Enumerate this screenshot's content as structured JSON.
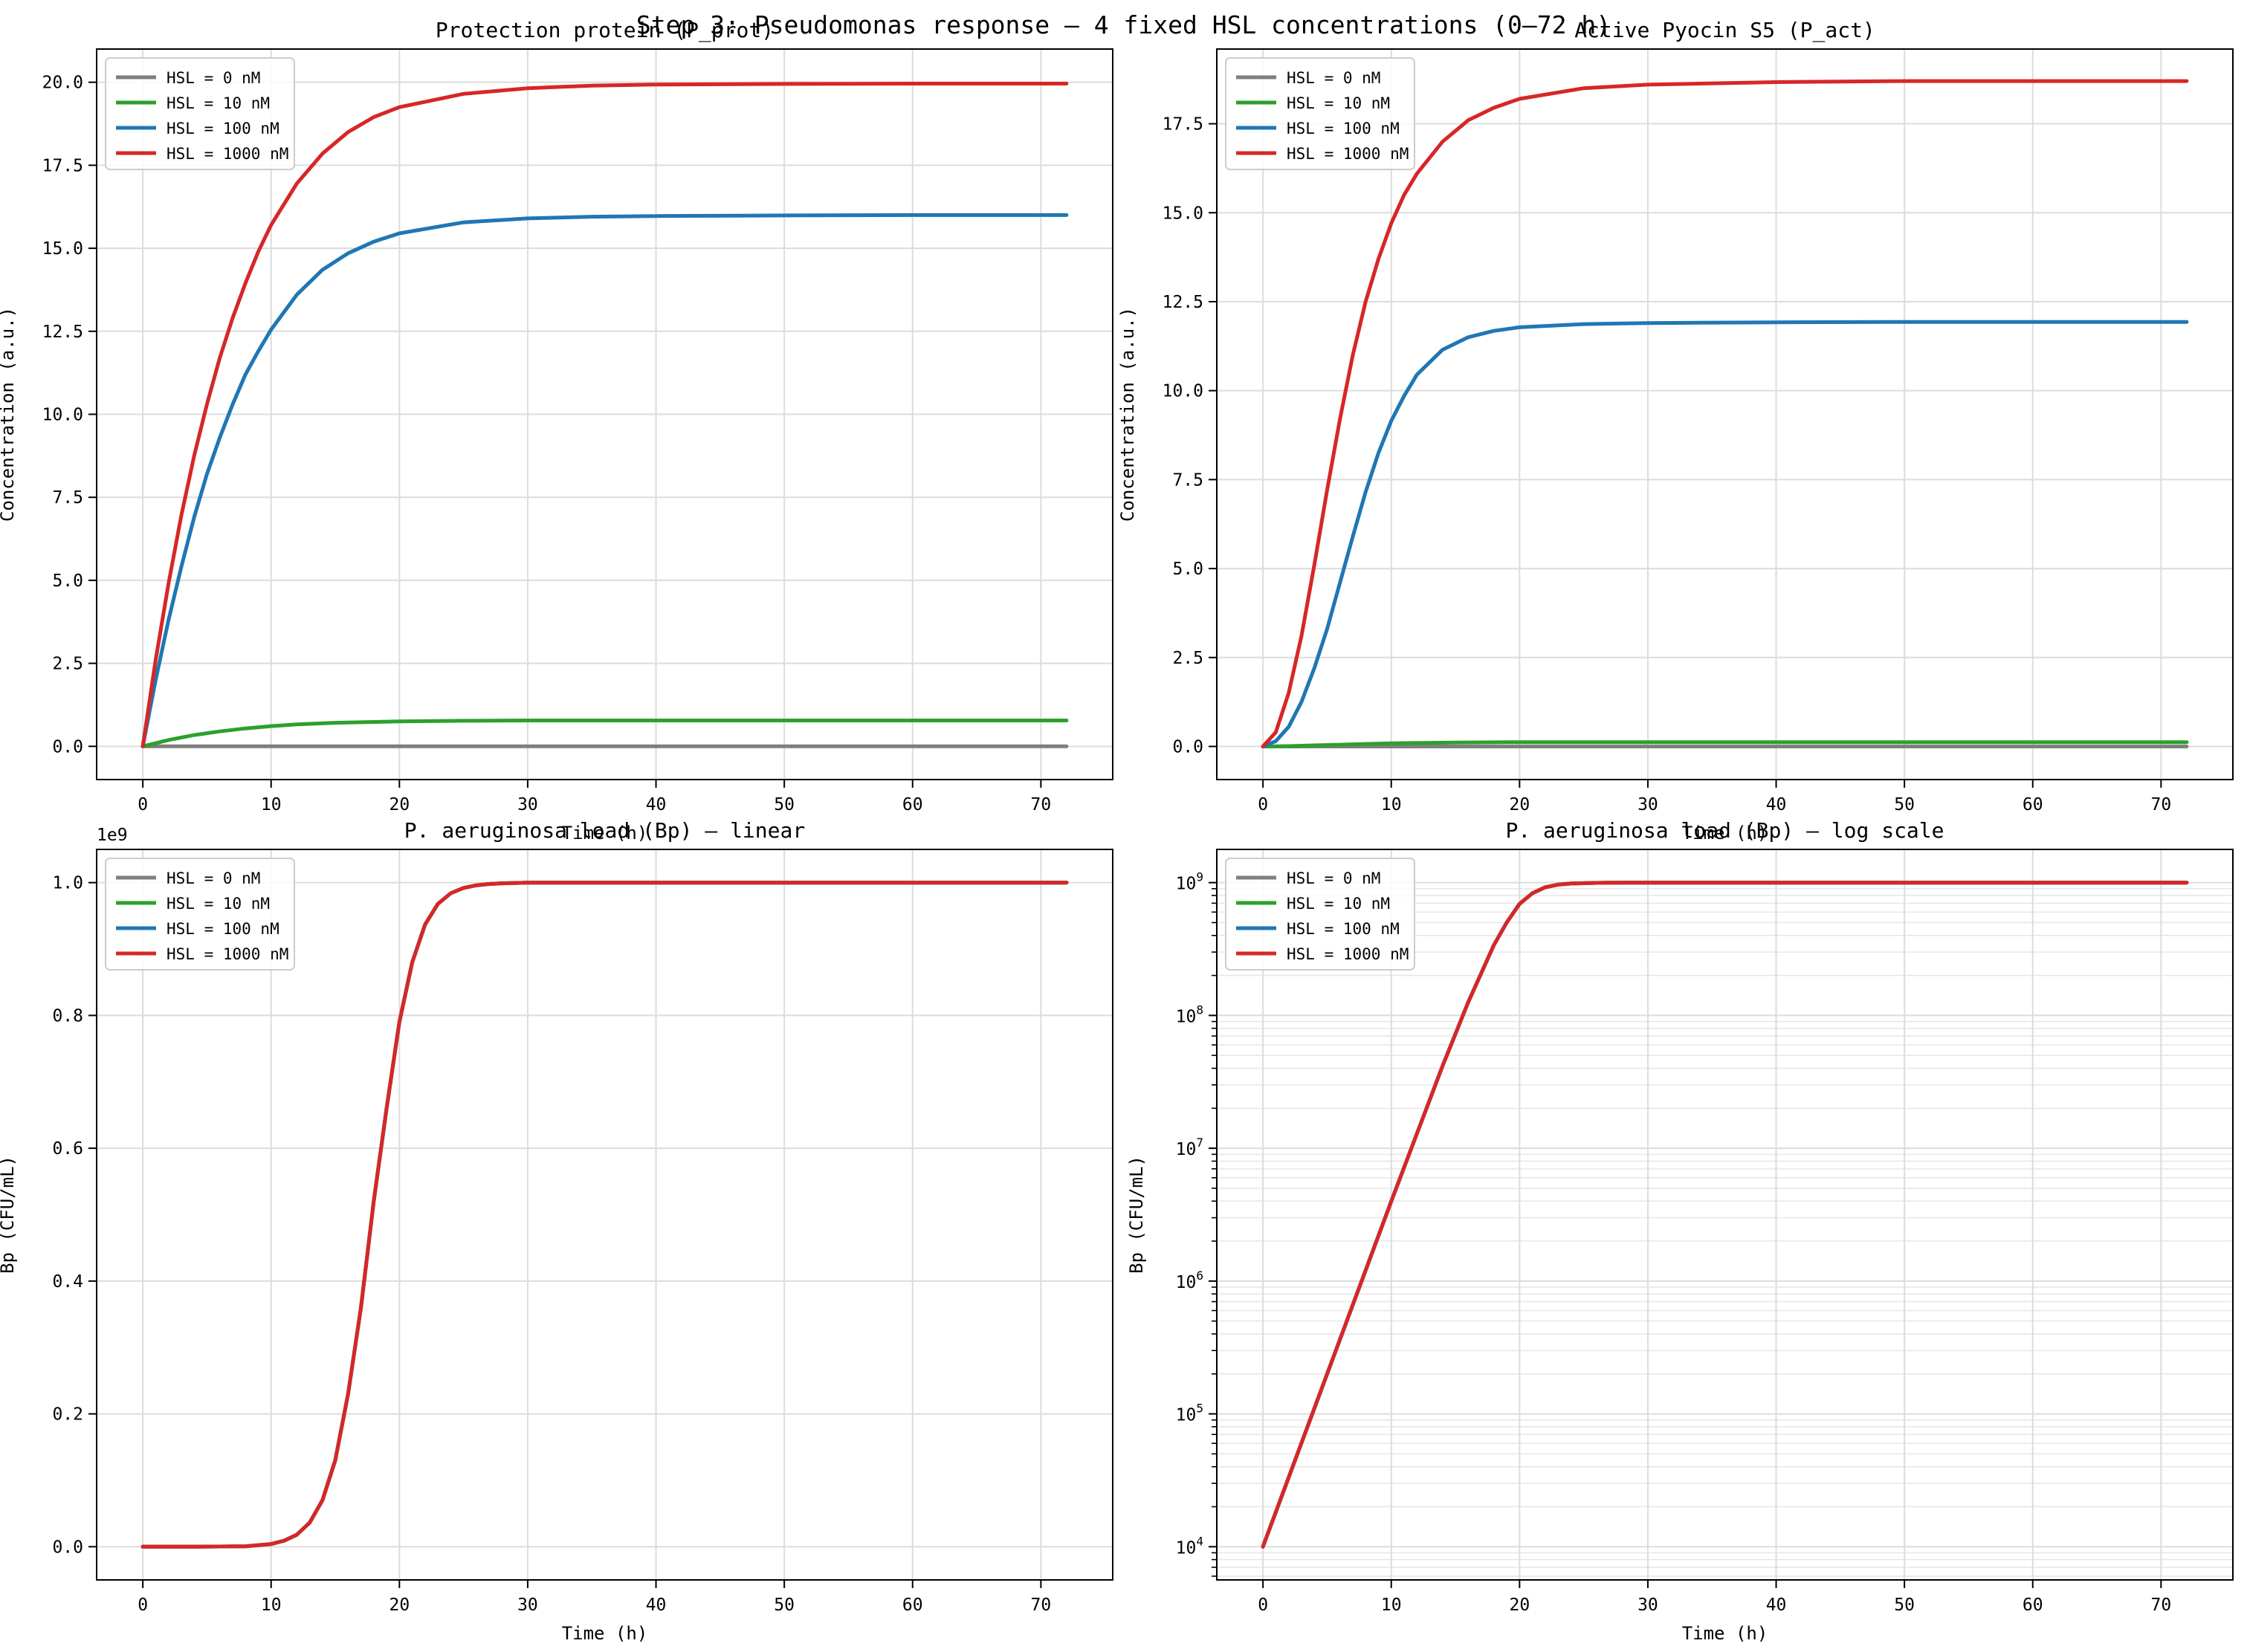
{
  "figure": {
    "suptitle": "Step 3: Pseudomonas response — 4 fixed HSL concentrations (0–72 h)"
  },
  "colors": {
    "HSL = 0 nM": "#7f7f7f",
    "HSL = 10 nM": "#2ca02c",
    "HSL = 100 nM": "#1f77b4",
    "HSL = 1000 nM": "#d62728"
  },
  "chart_data": [
    {
      "type": "line",
      "title": "Protection protein (P_prot)",
      "xlabel": "Time (h)",
      "ylabel": "Concentration (a.u.)",
      "xlim": [
        -3.6,
        75.6
      ],
      "ylim": [
        -1.0,
        21.0
      ],
      "xticks": [
        0,
        10,
        20,
        30,
        40,
        50,
        60,
        70
      ],
      "yticks": [
        0.0,
        2.5,
        5.0,
        7.5,
        10.0,
        12.5,
        15.0,
        17.5,
        20.0
      ],
      "ytick_labels": [
        "0.0",
        "2.5",
        "5.0",
        "7.5",
        "10.0",
        "12.5",
        "15.0",
        "17.5",
        "20.0"
      ],
      "yscale": "linear",
      "grid": true,
      "legend": "top-left",
      "series": [
        {
          "name": "HSL = 0 nM",
          "x": [
            0,
            72
          ],
          "y": [
            0,
            0
          ]
        },
        {
          "name": "HSL = 10 nM",
          "x": [
            0,
            2,
            4,
            6,
            8,
            10,
            12,
            15,
            20,
            25,
            30,
            40,
            50,
            72
          ],
          "y": [
            0,
            0.19,
            0.34,
            0.45,
            0.54,
            0.61,
            0.66,
            0.71,
            0.75,
            0.77,
            0.78,
            0.78,
            0.78,
            0.78
          ]
        },
        {
          "name": "HSL = 100 nM",
          "x": [
            0,
            1,
            2,
            3,
            4,
            5,
            6,
            7,
            8,
            9,
            10,
            12,
            14,
            16,
            18,
            20,
            25,
            30,
            35,
            40,
            50,
            60,
            72
          ],
          "y": [
            0,
            2.0,
            3.8,
            5.4,
            6.9,
            8.2,
            9.3,
            10.3,
            11.2,
            11.9,
            12.55,
            13.6,
            14.35,
            14.85,
            15.2,
            15.45,
            15.78,
            15.9,
            15.95,
            15.97,
            15.99,
            16.0,
            16.0
          ]
        },
        {
          "name": "HSL = 1000 nM",
          "x": [
            0,
            1,
            2,
            3,
            4,
            5,
            6,
            7,
            8,
            9,
            10,
            12,
            14,
            16,
            18,
            20,
            25,
            30,
            35,
            40,
            50,
            60,
            72
          ],
          "y": [
            0,
            2.6,
            4.9,
            6.95,
            8.75,
            10.3,
            11.7,
            12.9,
            13.95,
            14.9,
            15.7,
            16.95,
            17.85,
            18.5,
            18.95,
            19.25,
            19.65,
            19.82,
            19.9,
            19.93,
            19.95,
            19.96,
            19.96
          ]
        }
      ]
    },
    {
      "type": "line",
      "title": "Active Pyocin S5 (P_act)",
      "xlabel": "Time (h)",
      "ylabel": "Concentration (a.u.)",
      "xlim": [
        -3.6,
        75.6
      ],
      "ylim": [
        -0.93,
        19.6
      ],
      "xticks": [
        0,
        10,
        20,
        30,
        40,
        50,
        60,
        70
      ],
      "yticks": [
        0.0,
        2.5,
        5.0,
        7.5,
        10.0,
        12.5,
        15.0,
        17.5
      ],
      "ytick_labels": [
        "0.0",
        "2.5",
        "5.0",
        "7.5",
        "10.0",
        "12.5",
        "15.0",
        "17.5"
      ],
      "yscale": "linear",
      "grid": true,
      "legend": "top-left",
      "series": [
        {
          "name": "HSL = 0 nM",
          "x": [
            0,
            72
          ],
          "y": [
            0,
            0
          ]
        },
        {
          "name": "HSL = 10 nM",
          "x": [
            0,
            2,
            4,
            6,
            8,
            10,
            15,
            20,
            30,
            72
          ],
          "y": [
            0,
            0.01,
            0.03,
            0.05,
            0.07,
            0.09,
            0.11,
            0.12,
            0.12,
            0.12
          ]
        },
        {
          "name": "HSL = 100 nM",
          "x": [
            0,
            1,
            2,
            3,
            4,
            5,
            6,
            7,
            8,
            9,
            10,
            11,
            12,
            14,
            16,
            18,
            20,
            25,
            30,
            40,
            50,
            72
          ],
          "y": [
            0,
            0.15,
            0.55,
            1.25,
            2.2,
            3.3,
            4.6,
            5.9,
            7.15,
            8.25,
            9.15,
            9.85,
            10.45,
            11.15,
            11.5,
            11.68,
            11.78,
            11.87,
            11.9,
            11.92,
            11.93,
            11.93
          ]
        },
        {
          "name": "HSL = 1000 nM",
          "x": [
            0,
            1,
            2,
            3,
            4,
            5,
            6,
            7,
            8,
            9,
            10,
            11,
            12,
            14,
            16,
            18,
            20,
            25,
            30,
            40,
            50,
            72
          ],
          "y": [
            0,
            0.4,
            1.5,
            3.1,
            5.1,
            7.2,
            9.2,
            11.0,
            12.5,
            13.7,
            14.7,
            15.5,
            16.1,
            17.0,
            17.6,
            17.95,
            18.2,
            18.5,
            18.6,
            18.67,
            18.7,
            18.7
          ]
        }
      ]
    },
    {
      "type": "line",
      "title": "P. aeruginosa load (Bp) — linear",
      "xlabel": "Time (h)",
      "ylabel": "Bp (CFU/mL)",
      "offset_text": "1e9",
      "xlim": [
        -3.6,
        75.6
      ],
      "ylim": [
        -0.05,
        1.05
      ],
      "xticks": [
        0,
        10,
        20,
        30,
        40,
        50,
        60,
        70
      ],
      "yticks": [
        0.0,
        0.2,
        0.4,
        0.6,
        0.8,
        1.0
      ],
      "ytick_labels": [
        "0.0",
        "0.2",
        "0.4",
        "0.6",
        "0.8",
        "1.0"
      ],
      "yscale": "linear",
      "grid": true,
      "legend": "top-left",
      "series": [
        {
          "name": "HSL = 0 nM",
          "x": [
            0,
            4,
            8,
            10,
            11,
            12,
            13,
            14,
            15,
            16,
            17,
            18,
            19,
            20,
            21,
            22,
            23,
            24,
            25,
            26,
            27,
            28,
            30,
            35,
            40,
            72
          ],
          "y": [
            1e-05,
            6e-05,
            0.0006,
            0.004,
            0.009,
            0.018,
            0.036,
            0.07,
            0.13,
            0.23,
            0.36,
            0.52,
            0.66,
            0.79,
            0.88,
            0.937,
            0.968,
            0.984,
            0.992,
            0.996,
            0.998,
            0.999,
            1.0,
            1.0,
            1.0,
            1.0
          ]
        },
        {
          "name": "HSL = 10 nM",
          "x": [
            0,
            4,
            8,
            10,
            11,
            12,
            13,
            14,
            15,
            16,
            17,
            18,
            19,
            20,
            21,
            22,
            23,
            24,
            25,
            26,
            27,
            28,
            30,
            35,
            40,
            72
          ],
          "y": [
            1e-05,
            6e-05,
            0.0006,
            0.004,
            0.009,
            0.018,
            0.036,
            0.07,
            0.13,
            0.23,
            0.36,
            0.52,
            0.66,
            0.79,
            0.88,
            0.937,
            0.968,
            0.984,
            0.992,
            0.996,
            0.998,
            0.999,
            1.0,
            1.0,
            1.0,
            1.0
          ]
        },
        {
          "name": "HSL = 100 nM",
          "x": [
            0,
            4,
            8,
            10,
            11,
            12,
            13,
            14,
            15,
            16,
            17,
            18,
            19,
            20,
            21,
            22,
            23,
            24,
            25,
            26,
            27,
            28,
            30,
            35,
            40,
            72
          ],
          "y": [
            1e-05,
            6e-05,
            0.0006,
            0.004,
            0.009,
            0.018,
            0.036,
            0.07,
            0.13,
            0.23,
            0.36,
            0.52,
            0.66,
            0.79,
            0.88,
            0.937,
            0.968,
            0.984,
            0.992,
            0.996,
            0.998,
            0.999,
            1.0,
            1.0,
            1.0,
            1.0
          ]
        },
        {
          "name": "HSL = 1000 nM",
          "x": [
            0,
            4,
            8,
            10,
            11,
            12,
            13,
            14,
            15,
            16,
            17,
            18,
            19,
            20,
            21,
            22,
            23,
            24,
            25,
            26,
            27,
            28,
            30,
            35,
            40,
            72
          ],
          "y": [
            1e-05,
            6e-05,
            0.0006,
            0.004,
            0.009,
            0.018,
            0.036,
            0.07,
            0.13,
            0.23,
            0.36,
            0.52,
            0.66,
            0.79,
            0.88,
            0.937,
            0.968,
            0.984,
            0.992,
            0.996,
            0.998,
            0.999,
            1.0,
            1.0,
            1.0,
            1.0
          ]
        }
      ]
    },
    {
      "type": "line",
      "title": "P. aeruginosa load (Bp) — log scale",
      "xlabel": "Time (h)",
      "ylabel": "Bp (CFU/mL)",
      "xlim": [
        -3.6,
        75.6
      ],
      "ylim_log10": [
        3.75,
        9.25
      ],
      "xticks": [
        0,
        10,
        20,
        30,
        40,
        50,
        60,
        70
      ],
      "yticks_log10": [
        4,
        5,
        6,
        7,
        8,
        9
      ],
      "ytick_exponents": [
        "4",
        "5",
        "6",
        "7",
        "8",
        "9"
      ],
      "yscale": "log",
      "grid": true,
      "legend": "top-left",
      "series": [
        {
          "name": "HSL = 0 nM",
          "x": [
            0,
            5,
            10,
            14,
            16,
            18,
            19,
            20,
            21,
            22,
            23,
            24,
            26,
            28,
            30,
            72
          ],
          "y_log10": [
            4.0,
            5.3,
            6.6,
            7.62,
            8.1,
            8.53,
            8.7,
            8.84,
            8.92,
            8.965,
            8.985,
            8.993,
            8.998,
            9.0,
            9.0,
            9.0
          ]
        },
        {
          "name": "HSL = 10 nM",
          "x": [
            0,
            5,
            10,
            14,
            16,
            18,
            19,
            20,
            21,
            22,
            23,
            24,
            26,
            28,
            30,
            72
          ],
          "y_log10": [
            4.0,
            5.3,
            6.6,
            7.62,
            8.1,
            8.53,
            8.7,
            8.84,
            8.92,
            8.965,
            8.985,
            8.993,
            8.998,
            9.0,
            9.0,
            9.0
          ]
        },
        {
          "name": "HSL = 100 nM",
          "x": [
            0,
            5,
            10,
            14,
            16,
            18,
            19,
            20,
            21,
            22,
            23,
            24,
            26,
            28,
            30,
            72
          ],
          "y_log10": [
            4.0,
            5.3,
            6.6,
            7.62,
            8.1,
            8.53,
            8.7,
            8.84,
            8.92,
            8.965,
            8.985,
            8.993,
            8.998,
            9.0,
            9.0,
            9.0
          ]
        },
        {
          "name": "HSL = 1000 nM",
          "x": [
            0,
            5,
            10,
            14,
            16,
            18,
            19,
            20,
            21,
            22,
            23,
            24,
            26,
            28,
            30,
            72
          ],
          "y_log10": [
            4.0,
            5.3,
            6.6,
            7.62,
            8.1,
            8.53,
            8.7,
            8.84,
            8.92,
            8.965,
            8.985,
            8.993,
            8.998,
            9.0,
            9.0,
            9.0
          ]
        }
      ]
    }
  ]
}
